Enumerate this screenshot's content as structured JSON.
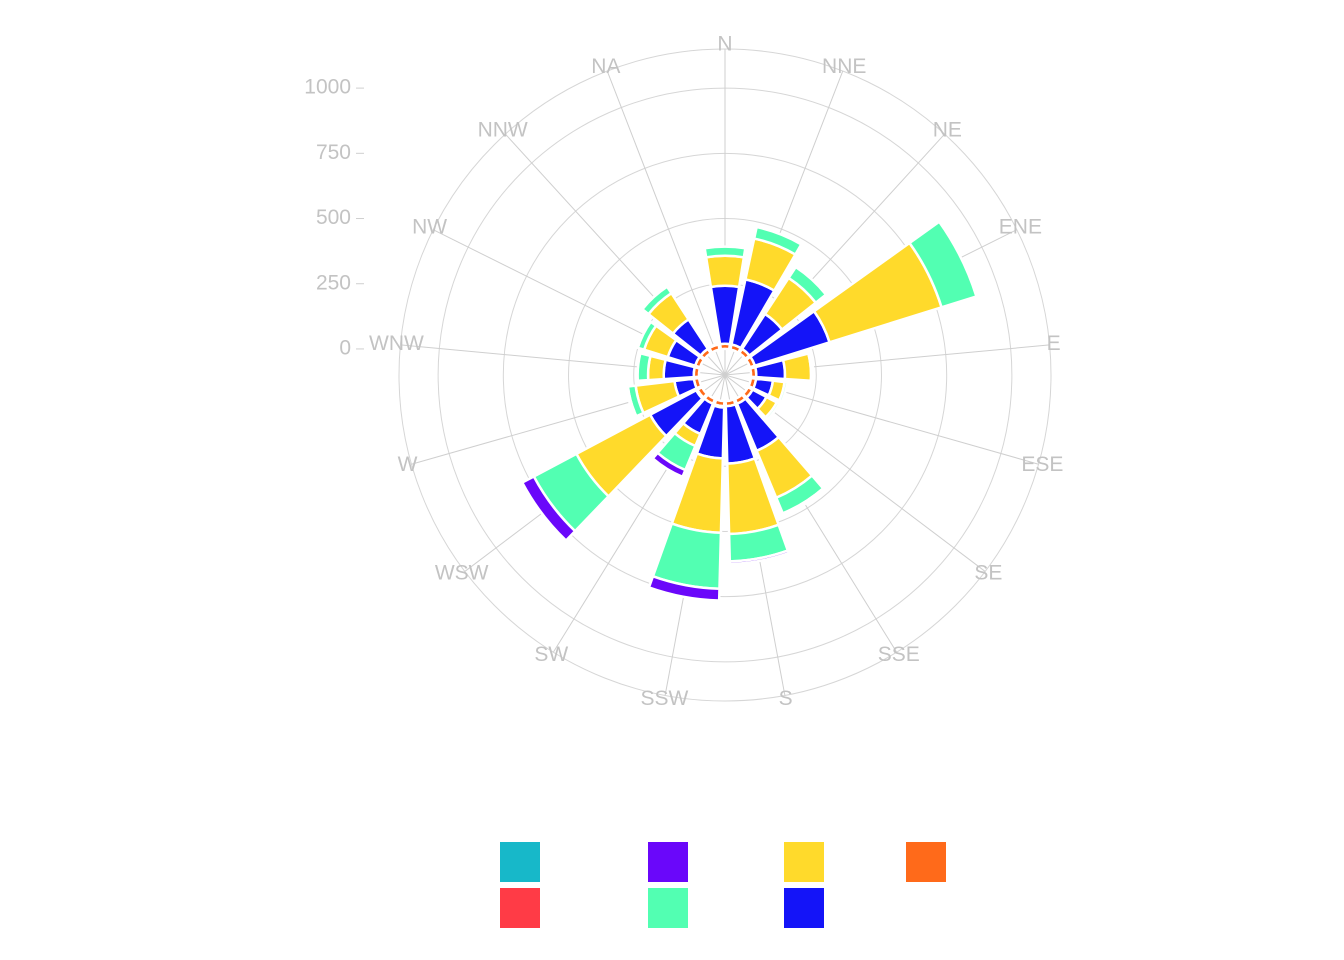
{
  "chart_data": {
    "type": "wind-rose",
    "directions": [
      "NA",
      "N",
      "NNE",
      "NE",
      "ENE",
      "E",
      "ESE",
      "SE",
      "SSE",
      "S",
      "SSW",
      "SW",
      "WSW",
      "W",
      "WNW",
      "NW",
      "NNW"
    ],
    "radial_ticks": [
      "0",
      "250",
      "500",
      "750",
      "1000"
    ],
    "rlim": [
      -100,
      1150
    ],
    "stack_order": [
      "orange",
      "red",
      "blue",
      "yellow",
      "mint",
      "purple",
      "teal"
    ],
    "series": [
      {
        "key": "teal",
        "color": "#17b8c9",
        "values": [
          0,
          0,
          0,
          0,
          0,
          0,
          0,
          0,
          0,
          0,
          0,
          0,
          0,
          0,
          0,
          0,
          0
        ]
      },
      {
        "key": "red",
        "color": "#ff3b46",
        "values": [
          2,
          0,
          0,
          0,
          0,
          0,
          0,
          0,
          0,
          0,
          5,
          0,
          5,
          0,
          0,
          0,
          0
        ]
      },
      {
        "key": "purple",
        "color": "#6a07fa",
        "values": [
          0,
          0,
          0,
          0,
          0,
          0,
          0,
          0,
          7,
          10,
          45,
          28,
          50,
          6,
          0,
          0,
          0
        ]
      },
      {
        "key": "yellow",
        "color": "#ffda2b",
        "values": [
          0,
          115,
          160,
          165,
          450,
          100,
          45,
          45,
          195,
          270,
          285,
          50,
          320,
          150,
          60,
          95,
          120
        ]
      },
      {
        "key": "mint",
        "color": "#52ffb2",
        "values": [
          0,
          35,
          45,
          50,
          140,
          8,
          10,
          10,
          65,
          105,
          215,
          100,
          185,
          30,
          40,
          25,
          30
        ]
      },
      {
        "key": "blue",
        "color": "#1414f8",
        "values": [
          0,
          222,
          255,
          160,
          300,
          110,
          65,
          60,
          195,
          220,
          195,
          125,
          200,
          75,
          115,
          110,
          135
        ]
      },
      {
        "key": "orange",
        "color": "#ff6a1a",
        "values": [
          20,
          20,
          20,
          20,
          20,
          20,
          20,
          20,
          20,
          20,
          20,
          20,
          20,
          20,
          20,
          20,
          20
        ]
      }
    ],
    "legend": {
      "placement": "bottom",
      "entries": [
        {
          "color": "#17b8c9"
        },
        {
          "color": "#6a07fa"
        },
        {
          "color": "#ffda2b"
        },
        {
          "color": "#ff6a1a"
        },
        {
          "color": "#ff3b46"
        },
        {
          "color": "#52ffb2"
        },
        {
          "color": "#1414f8"
        }
      ]
    }
  }
}
